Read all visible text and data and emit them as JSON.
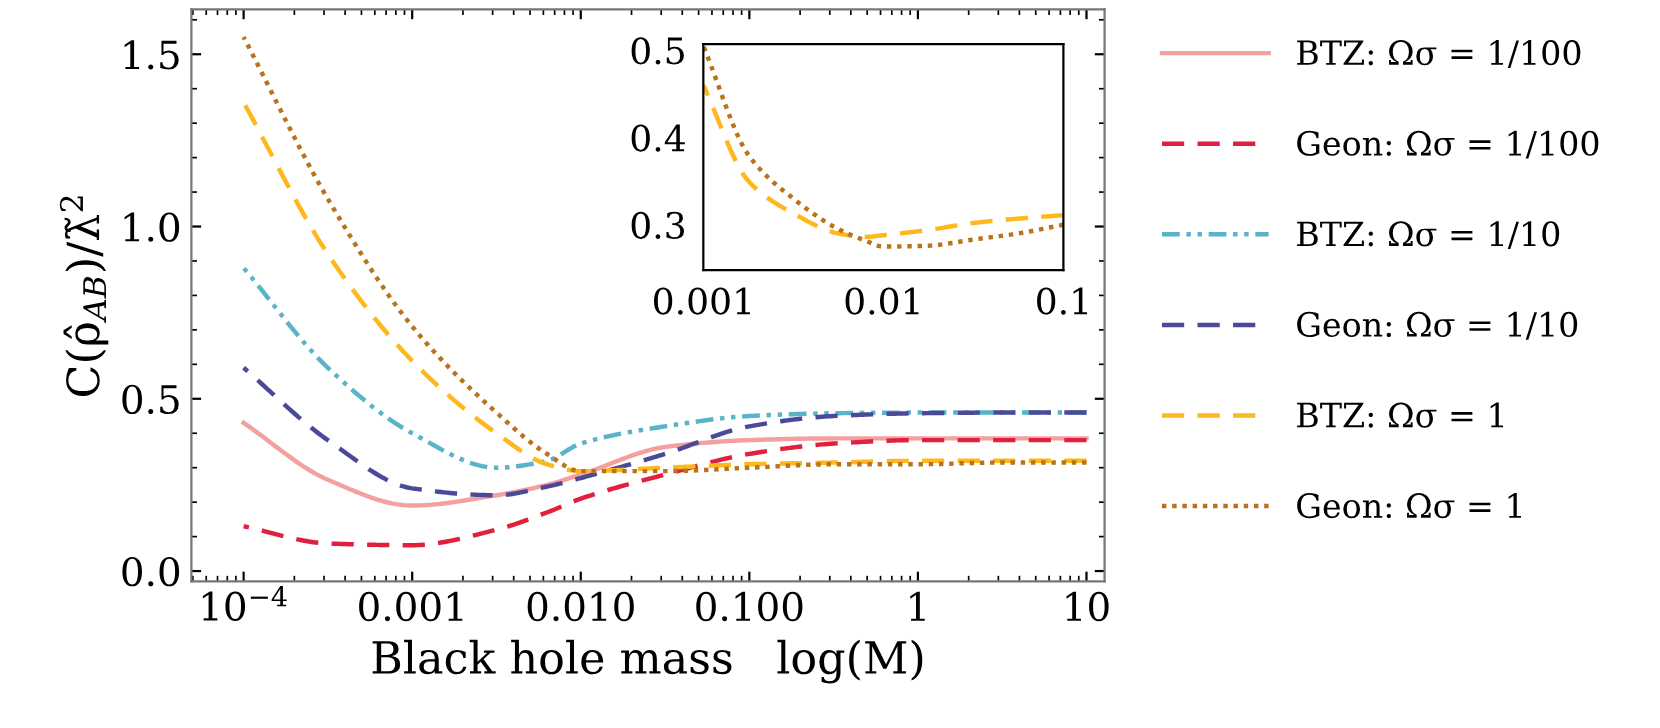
{
  "chart_data": [
    {
      "type": "line",
      "xlabel": "Black hole mass   log(M)",
      "ylabel": "C(ρ̂$_{AB}$)/λ̃$^{2}$",
      "log": "x",
      "x": [
        0.0001,
        0.000316,
        0.001,
        0.00316,
        0.0063,
        0.01,
        0.0316,
        0.1,
        0.316,
        1,
        3.16,
        10
      ],
      "xlim": [
        4.9e-05,
        12.8
      ],
      "ylim": [
        -0.03,
        1.63
      ],
      "xticks": [
        {
          "value": 0.0001,
          "label": "10$^{−4}$"
        },
        {
          "value": 0.001,
          "label": "0.001"
        },
        {
          "value": 0.01,
          "label": "0.010"
        },
        {
          "value": 0.1,
          "label": "0.100"
        },
        1,
        10
      ],
      "yticks": [
        {
          "value": 0.0,
          "label": "0.0"
        },
        0.5,
        {
          "value": 1.0,
          "label": "1.0"
        },
        1.5
      ],
      "grid": false,
      "legend": "right",
      "series": [
        {
          "name": "BTZ: Ωσ = 1/100",
          "color": "#f4a0a0",
          "line_style": "solid",
          "values": [
            0.43,
            0.265,
            0.19,
            0.22,
            0.25,
            0.28,
            0.36,
            0.38,
            0.385,
            0.385,
            0.385,
            0.385
          ]
        },
        {
          "name": "Geon: Ωσ = 1/100",
          "color": "#e0203c",
          "line_style": "dashed",
          "values": [
            0.13,
            0.08,
            0.075,
            0.12,
            0.17,
            0.21,
            0.28,
            0.34,
            0.37,
            0.38,
            0.38,
            0.38
          ]
        },
        {
          "name": "BTZ: Ωσ = 1/10",
          "color": "#5ab4c8",
          "line_style": "dashdot",
          "values": [
            0.88,
            0.59,
            0.4,
            0.3,
            0.32,
            0.37,
            0.42,
            0.45,
            0.458,
            0.46,
            0.46,
            0.46
          ]
        },
        {
          "name": "Geon: Ωσ = 1/10",
          "color": "#4a4a98",
          "line_style": "dashed",
          "values": [
            0.59,
            0.38,
            0.24,
            0.22,
            0.245,
            0.27,
            0.34,
            0.42,
            0.45,
            0.458,
            0.46,
            0.46
          ]
        },
        {
          "name": "BTZ: Ωσ = 1",
          "color": "#ffb81c",
          "line_style": "dashed",
          "values": [
            1.36,
            0.92,
            0.61,
            0.4,
            0.31,
            0.29,
            0.3,
            0.31,
            0.315,
            0.32,
            0.32,
            0.32
          ]
        },
        {
          "name": "Geon: Ωσ = 1",
          "color": "#b8731c",
          "line_style": "dotted",
          "values": [
            1.55,
            1.08,
            0.71,
            0.46,
            0.34,
            0.29,
            0.29,
            0.3,
            0.31,
            0.31,
            0.315,
            0.315
          ]
        }
      ]
    },
    {
      "type": "line",
      "log": "x",
      "x": [
        0.001,
        0.00178,
        0.00316,
        0.00562,
        0.0079,
        0.01,
        0.0178,
        0.0316,
        0.0562,
        0.1
      ],
      "xlim": [
        0.001,
        0.1
      ],
      "ylim": [
        0.248,
        0.507
      ],
      "xticks": [
        {
          "value": 0.001,
          "label": "0.001"
        },
        {
          "value": 0.01,
          "label": "0.01"
        },
        {
          "value": 0.1,
          "label": "0.1"
        }
      ],
      "yticks": [
        0.3,
        0.4,
        0.5
      ],
      "grid": false,
      "series": [
        {
          "color": "#ffb81c",
          "line_style": "dashed",
          "values": [
            0.46,
            0.35,
            0.313,
            0.29,
            0.286,
            0.288,
            0.294,
            0.302,
            0.307,
            0.311
          ]
        },
        {
          "color": "#b8731c",
          "line_style": "dotted",
          "values": [
            0.505,
            0.38,
            0.33,
            0.295,
            0.282,
            0.275,
            0.276,
            0.283,
            0.29,
            0.3
          ]
        }
      ]
    }
  ]
}
